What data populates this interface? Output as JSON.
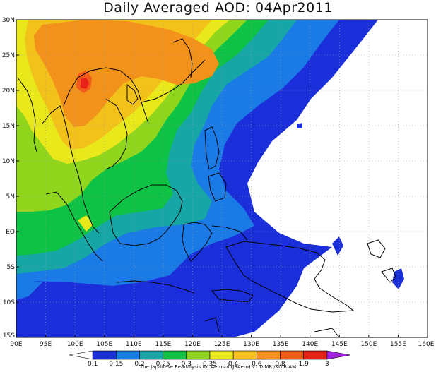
{
  "title": "Daily Averaged AOD: 04Apr2011",
  "credit": "The Japanese Reanalysis for Aerosol (JRAero) v1.0 MRI/KU RIAM",
  "map": {
    "lon_range": [
      90,
      160
    ],
    "lat_range": [
      -15,
      30
    ],
    "lon_ticks": [
      "90E",
      "95E",
      "100E",
      "105E",
      "110E",
      "115E",
      "120E",
      "125E",
      "130E",
      "135E",
      "140E",
      "145E",
      "150E",
      "155E",
      "160E"
    ],
    "lat_ticks": [
      "30N",
      "25N",
      "20N",
      "15N",
      "10N",
      "5N",
      "EQ",
      "5S",
      "10S",
      "15S"
    ],
    "grid": true
  },
  "colorbar": {
    "levels": [
      "0.1",
      "0.15",
      "0.2",
      "0.25",
      "0.3",
      "0.35",
      "0.4",
      "0.6",
      "0.8",
      "1.9",
      "3"
    ],
    "colors": [
      "#ffffff",
      "#1a2fd9",
      "#1a7ae6",
      "#16a6a6",
      "#0ec245",
      "#90d61c",
      "#e8e81a",
      "#f2c21a",
      "#f2921a",
      "#f25a1a",
      "#e8201a",
      "#a020e0"
    ]
  },
  "regions": [
    {
      "level": 0.1,
      "color": "#1a2fd9"
    },
    {
      "level": 0.15,
      "color": "#1a7ae6"
    },
    {
      "level": 0.2,
      "color": "#16a6a6"
    },
    {
      "level": 0.25,
      "color": "#0ec245"
    },
    {
      "level": 0.3,
      "color": "#90d61c"
    },
    {
      "level": 0.35,
      "color": "#e8e81a"
    },
    {
      "level": 0.4,
      "color": "#f2c21a"
    },
    {
      "level": 0.6,
      "color": "#f2921a"
    },
    {
      "level": 0.8,
      "color": "#f25a1a"
    },
    {
      "level": 1.9,
      "color": "#e8201a"
    }
  ]
}
